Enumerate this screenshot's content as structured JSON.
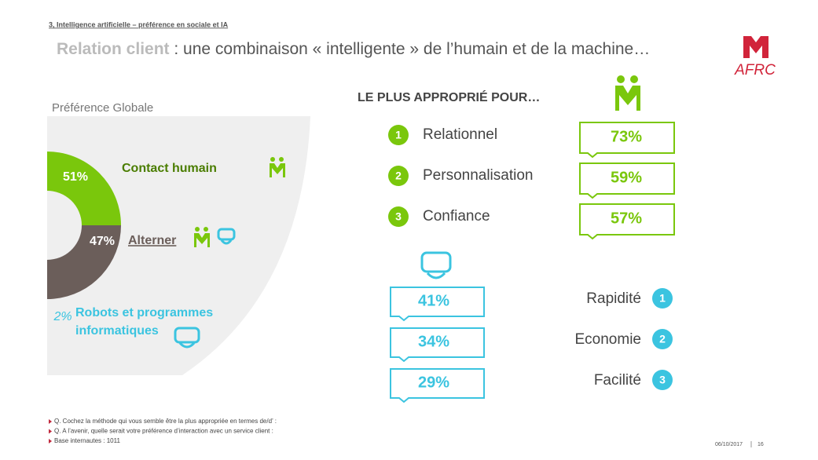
{
  "header": {
    "breadcrumb": "3, Intelligence artificielle – préférence en sociale et IA",
    "title_highlight": "Relation client",
    "title_rest": " : une combinaison « intelligente » de l’humain et de la machine…",
    "logo": "AFRC"
  },
  "chart_data": {
    "type": "pie",
    "title": "Préférence Globale",
    "categories": [
      "Contact humain",
      "Alterner",
      "Robots et programmes informatiques"
    ],
    "values": [
      51,
      47,
      2
    ],
    "value_labels": [
      "51%",
      "47%",
      "2%"
    ],
    "colors": [
      "#7ac70c",
      "#6b5e5a",
      "#3bc4e0"
    ]
  },
  "ranking": {
    "title": "LE PLUS APPROPRIÉ POUR…",
    "human": [
      {
        "rank": 1,
        "label": "Relationnel",
        "score": "73%"
      },
      {
        "rank": 2,
        "label": "Personnalisation",
        "score": "59%"
      },
      {
        "rank": 3,
        "label": "Confiance",
        "score": "57%"
      }
    ],
    "machine": [
      {
        "rank": 1,
        "label": "Rapidité",
        "score": "41%"
      },
      {
        "rank": 2,
        "label": "Economie",
        "score": "34%"
      },
      {
        "rank": 3,
        "label": "Facilité",
        "score": "29%"
      }
    ]
  },
  "footer": {
    "notes": [
      "Q. Cochez la méthode qui vous semble être la plus appropriée en termes de/d’ :",
      "Q. A l’avenir, quelle serait votre préférence d’interaction avec un service client :",
      "Base internautes : 1011"
    ],
    "date": "06/10/2017",
    "page": "16"
  }
}
